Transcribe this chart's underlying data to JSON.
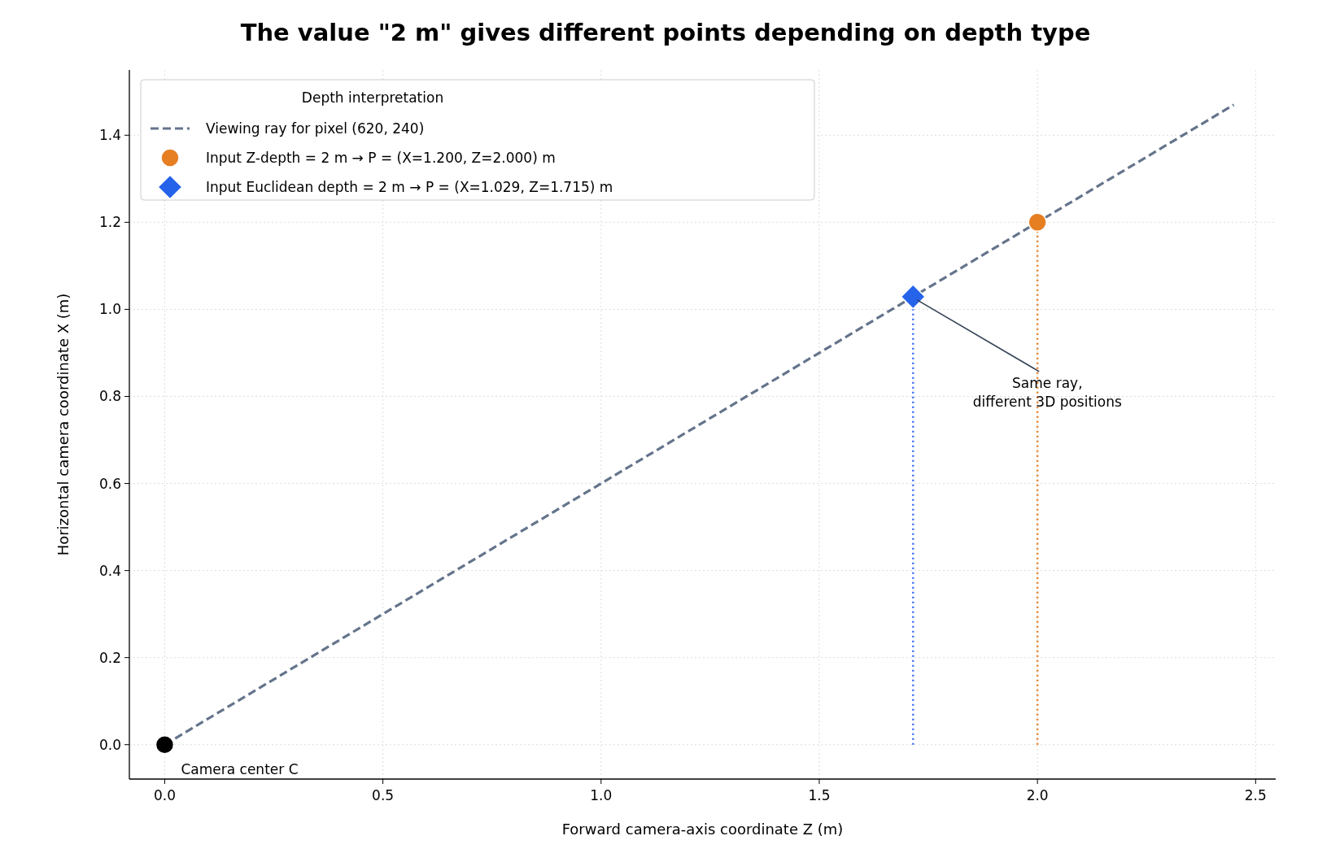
{
  "chart_data": {
    "type": "line",
    "title": "The value \"2 m\" gives different points depending on depth type",
    "xlabel": "Forward camera-axis coordinate Z (m)",
    "ylabel": "Horizontal camera coordinate X (m)",
    "legend_title": "Depth interpretation",
    "legend": "top left",
    "grid": true,
    "xlim": [
      -0.081,
      2.546
    ],
    "ylim": [
      -0.079,
      1.55
    ],
    "xticks": [
      {
        "value": 0,
        "label": "0.0"
      },
      {
        "value": 0.5,
        "label": "0.5"
      },
      {
        "value": 1,
        "label": "1.0"
      },
      {
        "value": 1.5,
        "label": "1.5"
      },
      {
        "value": 2,
        "label": "2.0"
      },
      {
        "value": 2.5,
        "label": "2.5"
      }
    ],
    "yticks": [
      {
        "value": 0,
        "label": "0.0"
      },
      {
        "value": 0.2,
        "label": "0.2"
      },
      {
        "value": 0.4,
        "label": "0.4"
      },
      {
        "value": 0.6,
        "label": "0.6"
      },
      {
        "value": 0.8,
        "label": "0.8"
      },
      {
        "value": 1,
        "label": "1.0"
      },
      {
        "value": 1.2,
        "label": "1.2"
      },
      {
        "value": 1.4,
        "label": "1.4"
      }
    ],
    "series": [
      {
        "name": "Viewing ray for pixel (620, 240)",
        "color": "#64748b",
        "line_style": "dashed",
        "marker": "none",
        "x": [
          0,
          2.45
        ],
        "values": [
          0,
          1.47
        ]
      },
      {
        "color": "#e67e22",
        "line_style": "dotted",
        "marker": "none",
        "x": [
          2,
          2
        ],
        "values": [
          0,
          1.2
        ]
      },
      {
        "color": "#3b6ef5",
        "line_style": "dotted",
        "marker": "none",
        "x": [
          1.715,
          1.715
        ],
        "values": [
          0,
          1.029
        ]
      },
      {
        "type": "scatter",
        "name": "Input Z-depth = 2 m → P = (X=1.200, Z=2.000) m",
        "color": "#e67e22",
        "marker": "circle",
        "x": [
          2
        ],
        "values": [
          1.2
        ]
      },
      {
        "type": "scatter",
        "name": "Input Euclidean depth = 2 m → P = (X=1.029, Z=1.715) m",
        "color": "#2563eb",
        "marker": "diamond",
        "x": [
          1.715
        ],
        "values": [
          1.029
        ]
      },
      {
        "type": "scatter",
        "color": "#000000",
        "marker": "circle",
        "x": [
          0
        ],
        "values": [
          0
        ]
      }
    ],
    "annotations": [
      {
        "text": "Same ray,\ndifferent 3D positions",
        "x": 1.715,
        "y": 1.029
      },
      {
        "text": "Camera center C",
        "x": 0,
        "y": 0
      }
    ]
  }
}
